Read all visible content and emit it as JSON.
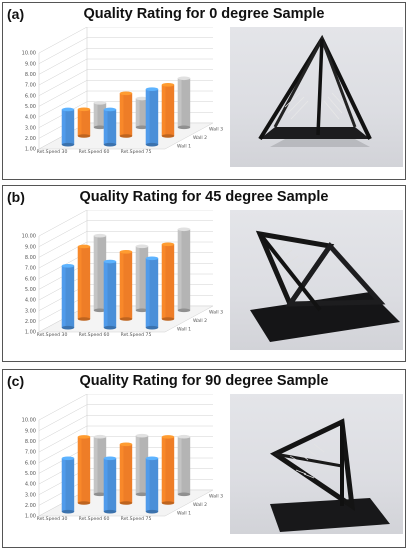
{
  "panels": [
    {
      "letter": "(a)",
      "title": "Quality Rating for 0 degree Sample"
    },
    {
      "letter": "(b)",
      "title": "Quality Rating for 45 degree Sample"
    },
    {
      "letter": "(c)",
      "title": "Quality Rating for 90 degree Sample"
    }
  ],
  "photos": [
    {
      "subject": "upright-pyramid-sample"
    },
    {
      "subject": "tilted-pyramid-sample"
    },
    {
      "subject": "sideways-pyramid-sample"
    }
  ],
  "colors": {
    "wall1": "#4a8fd8",
    "wall2": "#ee7d27",
    "wall3": "#b4b4b4",
    "grid": "#d0d0d0",
    "frame": "#555555"
  },
  "chart_data": [
    {
      "type": "bar",
      "title": "Quality Rating for 0 degree Sample",
      "categories": [
        "Ret.Speed 30",
        "Ret.Speed 60",
        "Ret.Speed 75"
      ],
      "series": [
        {
          "name": "Wall 1",
          "values": [
            4.3,
            4.3,
            6.2
          ]
        },
        {
          "name": "Wall 2",
          "values": [
            3.5,
            5.0,
            5.8
          ]
        },
        {
          "name": "Wall 3",
          "values": [
            3.3,
            3.7,
            5.6
          ]
        }
      ],
      "yticks": [
        "1.00",
        "2.00",
        "3.00",
        "4.00",
        "5.00",
        "6.00",
        "7.00",
        "8.00",
        "9.00",
        "10.00"
      ],
      "ylim": [
        1,
        10
      ],
      "grid": true,
      "legend": "series labels at right end of depth axis"
    },
    {
      "type": "bar",
      "title": "Quality Rating for 45 degree Sample",
      "categories": [
        "Ret.Speed 30",
        "Ret.Speed 60",
        "Ret.Speed 75"
      ],
      "series": [
        {
          "name": "Wall 1",
          "values": [
            6.8,
            7.2,
            7.5
          ]
        },
        {
          "name": "Wall 2",
          "values": [
            7.8,
            7.3,
            8.0
          ]
        },
        {
          "name": "Wall 3",
          "values": [
            8.0,
            7.0,
            8.6
          ]
        }
      ],
      "yticks": [
        "1.00",
        "2.00",
        "3.00",
        "4.00",
        "5.00",
        "6.00",
        "7.00",
        "8.00",
        "9.00",
        "10.00"
      ],
      "ylim": [
        1,
        10
      ],
      "grid": true,
      "legend": "series labels at right end of depth axis"
    },
    {
      "type": "bar",
      "title": "Quality Rating for 90 degree Sample",
      "categories": [
        "Ret.Speed 30",
        "Ret.Speed 60",
        "Ret.Speed 75"
      ],
      "series": [
        {
          "name": "Wall 1",
          "values": [
            6.0,
            6.0,
            6.0
          ]
        },
        {
          "name": "Wall 2",
          "values": [
            7.2,
            6.5,
            7.2
          ]
        },
        {
          "name": "Wall 3",
          "values": [
            6.4,
            6.5,
            6.4
          ]
        }
      ],
      "yticks": [
        "1.00",
        "2.00",
        "3.00",
        "4.00",
        "5.00",
        "6.00",
        "7.00",
        "8.00",
        "9.00",
        "10.00"
      ],
      "ylim": [
        1,
        10
      ],
      "grid": true,
      "legend": "series labels at right end of depth axis"
    }
  ]
}
